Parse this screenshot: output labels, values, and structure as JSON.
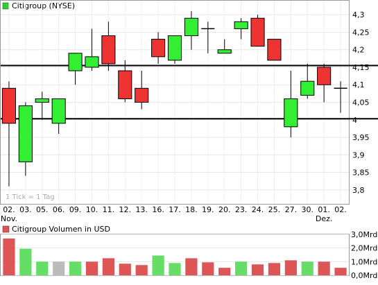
{
  "chart_data": [
    {
      "type": "candlestick",
      "legend": {
        "label": "Citigroup (NYSE)",
        "color": "#33cc33"
      },
      "note": "1 Tick = 1 Tag",
      "ylim": [
        3.76,
        4.34
      ],
      "y_ticks": [
        "3,8",
        "3,85",
        "3,9",
        "3,95",
        "4",
        "4,05",
        "4,1",
        "4,15",
        "4,2",
        "4,25",
        "4,3"
      ],
      "x_labels": [
        "02.",
        "03.",
        "05.",
        "06.",
        "09.",
        "10.",
        "11.",
        "12.",
        "13.",
        "16.",
        "17.",
        "18.",
        "19.",
        "20.",
        "23.",
        "24.",
        "25.",
        "27.",
        "30.",
        "01.",
        "02."
      ],
      "x_month_labels": [
        {
          "index": 0,
          "label": "Nov."
        },
        {
          "index": 19,
          "label": "Dez."
        }
      ],
      "horizontal_lines": [
        4.155,
        4.003
      ],
      "colors": {
        "up": "#33ee33",
        "down": "#ee3333",
        "neutral": "#000000"
      },
      "candles": [
        {
          "x": "02.",
          "open": 4.09,
          "high": 4.11,
          "low": 3.81,
          "close": 3.99
        },
        {
          "x": "03.",
          "open": 3.88,
          "high": 4.05,
          "low": 3.84,
          "close": 4.04
        },
        {
          "x": "05.",
          "open": 4.05,
          "high": 4.08,
          "low": 4.0,
          "close": 4.06
        },
        {
          "x": "06.",
          "open": 3.99,
          "high": 4.06,
          "low": 3.96,
          "close": 4.06
        },
        {
          "x": "09.",
          "open": 4.14,
          "high": 4.19,
          "low": 4.1,
          "close": 4.19
        },
        {
          "x": "10.",
          "open": 4.15,
          "high": 4.26,
          "low": 4.14,
          "close": 4.18
        },
        {
          "x": "11.",
          "open": 4.24,
          "high": 4.28,
          "low": 4.14,
          "close": 4.16
        },
        {
          "x": "12.",
          "open": 4.14,
          "high": 4.17,
          "low": 4.05,
          "close": 4.06
        },
        {
          "x": "13.",
          "open": 4.09,
          "high": 4.14,
          "low": 4.03,
          "close": 4.05
        },
        {
          "x": "16.",
          "open": 4.23,
          "high": 4.25,
          "low": 4.16,
          "close": 4.18
        },
        {
          "x": "17.",
          "open": 4.17,
          "high": 4.24,
          "low": 4.16,
          "close": 4.24
        },
        {
          "x": "18.",
          "open": 4.24,
          "high": 4.31,
          "low": 4.2,
          "close": 4.29
        },
        {
          "x": "19.",
          "open": 4.26,
          "high": 4.28,
          "low": 4.19,
          "close": 4.26
        },
        {
          "x": "20.",
          "open": 4.19,
          "high": 4.23,
          "low": 4.19,
          "close": 4.2
        },
        {
          "x": "23.",
          "open": 4.26,
          "high": 4.29,
          "low": 4.23,
          "close": 4.28
        },
        {
          "x": "24.",
          "open": 4.29,
          "high": 4.3,
          "low": 4.21,
          "close": 4.21
        },
        {
          "x": "25.",
          "open": 4.23,
          "high": 4.23,
          "low": 4.17,
          "close": 4.17
        },
        {
          "x": "27.",
          "open": 3.98,
          "high": 4.14,
          "low": 3.95,
          "close": 4.06
        },
        {
          "x": "30.",
          "open": 4.07,
          "high": 4.16,
          "low": 4.06,
          "close": 4.11
        },
        {
          "x": "01.",
          "open": 4.15,
          "high": 4.16,
          "low": 4.05,
          "close": 4.1
        },
        {
          "x": "02.",
          "open": 4.09,
          "high": 4.11,
          "low": 4.02,
          "close": 4.09
        }
      ]
    },
    {
      "type": "bar",
      "legend": {
        "label": "Citigroup Volumen in USD",
        "color": "#dd5555"
      },
      "y_ticks": [
        "0,0Mrd",
        "1,0Mrd",
        "2,0Mrd",
        "3,0Mrd"
      ],
      "ylim": [
        0,
        3.0
      ],
      "colors": {
        "up": "#66dd66",
        "down": "#dd5555",
        "neutral": "#bbbbbb"
      },
      "categories": [
        "02.",
        "03.",
        "05.",
        "06.",
        "09.",
        "10.",
        "11.",
        "12.",
        "13.",
        "16.",
        "17.",
        "18.",
        "19.",
        "20.",
        "23.",
        "24.",
        "25.",
        "27.",
        "30.",
        "01.",
        "02."
      ],
      "values": [
        2.7,
        1.95,
        1.0,
        1.0,
        1.0,
        1.0,
        1.25,
        0.85,
        0.75,
        1.45,
        0.9,
        1.25,
        0.95,
        0.55,
        1.0,
        0.8,
        0.9,
        1.1,
        1.0,
        1.0,
        0.55
      ],
      "bar_colors": [
        "down",
        "up",
        "up",
        "neutral",
        "up",
        "down",
        "down",
        "down",
        "down",
        "up",
        "up",
        "down",
        "down",
        "down",
        "up",
        "down",
        "down",
        "down",
        "up",
        "down",
        "down"
      ]
    }
  ]
}
